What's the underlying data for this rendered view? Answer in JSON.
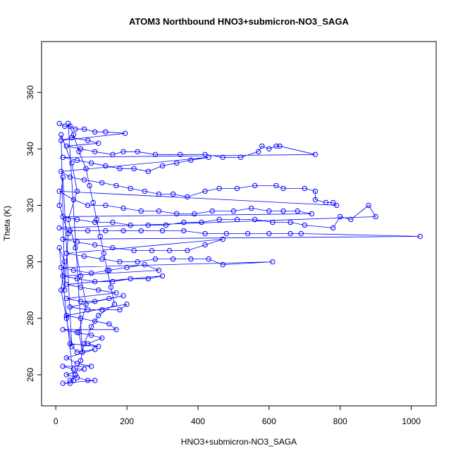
{
  "chart_data": {
    "type": "scatter",
    "title": "ATOM3 Northbound HNO3+submicron-NO3_SAGA",
    "xlabel": "HNO3+submicron-NO3_SAGA",
    "ylabel": "Theta (K)",
    "xlim": [
      -40,
      1070
    ],
    "ylim": [
      249,
      378
    ],
    "xticks": [
      0,
      200,
      400,
      600,
      800,
      1000
    ],
    "yticks": [
      260,
      280,
      300,
      320,
      340,
      360
    ],
    "xtick_labels": [
      "0",
      "200",
      "400",
      "600",
      "800",
      "1000"
    ],
    "ytick_labels": [
      "260",
      "280",
      "300",
      "320",
      "340",
      "360"
    ],
    "grid": false,
    "legend": "none",
    "series": [
      {
        "color": "#0000ff",
        "marker": "open-circle",
        "line": true,
        "points": [
          [
            10,
            349
          ],
          [
            25,
            348
          ],
          [
            40,
            348
          ],
          [
            55,
            347
          ],
          [
            80,
            347
          ],
          [
            110,
            346
          ],
          [
            140,
            346
          ],
          [
            195,
            345.5
          ],
          [
            15,
            343
          ],
          [
            45,
            344
          ],
          [
            90,
            343
          ],
          [
            120,
            342
          ],
          [
            30,
            341
          ],
          [
            70,
            340
          ],
          [
            110,
            339
          ],
          [
            160,
            338
          ],
          [
            190,
            339
          ],
          [
            230,
            339
          ],
          [
            280,
            338
          ],
          [
            350,
            338
          ],
          [
            420,
            338
          ],
          [
            470,
            337
          ],
          [
            520,
            337
          ],
          [
            570,
            339
          ],
          [
            580,
            341
          ],
          [
            600,
            340
          ],
          [
            620,
            341
          ],
          [
            630,
            341
          ],
          [
            730,
            338
          ],
          [
            20,
            337
          ],
          [
            60,
            336
          ],
          [
            100,
            335
          ],
          [
            140,
            334
          ],
          [
            180,
            333
          ],
          [
            220,
            333
          ],
          [
            260,
            332
          ],
          [
            300,
            334
          ],
          [
            340,
            335
          ],
          [
            380,
            336
          ],
          [
            430,
            337
          ],
          [
            15,
            332
          ],
          [
            40,
            330
          ],
          [
            80,
            329
          ],
          [
            130,
            328
          ],
          [
            170,
            327
          ],
          [
            210,
            326
          ],
          [
            250,
            325
          ],
          [
            290,
            324
          ],
          [
            330,
            324
          ],
          [
            370,
            323
          ],
          [
            420,
            325
          ],
          [
            460,
            326
          ],
          [
            510,
            326
          ],
          [
            560,
            327
          ],
          [
            620,
            327
          ],
          [
            640,
            326
          ],
          [
            700,
            326
          ],
          [
            730,
            325
          ],
          [
            730,
            322
          ],
          [
            760,
            321
          ],
          [
            780,
            321
          ],
          [
            790,
            320
          ],
          [
            10,
            325
          ],
          [
            50,
            322
          ],
          [
            90,
            320
          ],
          [
            140,
            320
          ],
          [
            190,
            319
          ],
          [
            240,
            318
          ],
          [
            290,
            318
          ],
          [
            340,
            317
          ],
          [
            390,
            317
          ],
          [
            440,
            318
          ],
          [
            500,
            318
          ],
          [
            550,
            319
          ],
          [
            600,
            318
          ],
          [
            640,
            318
          ],
          [
            680,
            318
          ],
          [
            720,
            317
          ],
          [
            20,
            316
          ],
          [
            60,
            315
          ],
          [
            110,
            314
          ],
          [
            160,
            314
          ],
          [
            210,
            313
          ],
          [
            260,
            313
          ],
          [
            310,
            313
          ],
          [
            360,
            314
          ],
          [
            410,
            314
          ],
          [
            460,
            315
          ],
          [
            510,
            315
          ],
          [
            560,
            315
          ],
          [
            610,
            314
          ],
          [
            660,
            314
          ],
          [
            700,
            313
          ],
          [
            780,
            312
          ],
          [
            800,
            316
          ],
          [
            830,
            315
          ],
          [
            880,
            320
          ],
          [
            900,
            316
          ],
          [
            10,
            312
          ],
          [
            40,
            311
          ],
          [
            90,
            311
          ],
          [
            140,
            311
          ],
          [
            190,
            311
          ],
          [
            240,
            311
          ],
          [
            300,
            311
          ],
          [
            360,
            311
          ],
          [
            420,
            310
          ],
          [
            480,
            310
          ],
          [
            540,
            310
          ],
          [
            600,
            310
          ],
          [
            660,
            310
          ],
          [
            690,
            310
          ],
          [
            1025,
            309
          ],
          [
            20,
            308
          ],
          [
            60,
            307
          ],
          [
            110,
            306
          ],
          [
            160,
            305
          ],
          [
            220,
            304
          ],
          [
            270,
            304
          ],
          [
            320,
            304
          ],
          [
            370,
            304
          ],
          [
            420,
            306
          ],
          [
            470,
            308
          ],
          [
            30,
            303
          ],
          [
            80,
            302
          ],
          [
            130,
            301
          ],
          [
            180,
            300
          ],
          [
            230,
            300
          ],
          [
            280,
            301
          ],
          [
            330,
            301
          ],
          [
            380,
            301
          ],
          [
            430,
            301
          ],
          [
            470,
            299
          ],
          [
            610,
            300
          ],
          [
            15,
            298
          ],
          [
            50,
            297
          ],
          [
            100,
            296
          ],
          [
            150,
            297
          ],
          [
            200,
            298
          ],
          [
            250,
            299
          ],
          [
            290,
            297
          ],
          [
            20,
            295
          ],
          [
            60,
            294
          ],
          [
            110,
            293
          ],
          [
            160,
            293
          ],
          [
            210,
            294
          ],
          [
            260,
            294
          ],
          [
            300,
            295
          ],
          [
            30,
            292
          ],
          [
            70,
            291
          ],
          [
            120,
            290
          ],
          [
            170,
            289
          ],
          [
            30,
            287
          ],
          [
            70,
            286
          ],
          [
            110,
            286
          ],
          [
            150,
            287
          ],
          [
            190,
            288
          ],
          [
            40,
            284
          ],
          [
            90,
            283
          ],
          [
            130,
            283
          ],
          [
            180,
            283
          ],
          [
            200,
            285
          ],
          [
            30,
            281
          ],
          [
            70,
            280
          ],
          [
            110,
            279
          ],
          [
            150,
            278
          ],
          [
            170,
            276
          ],
          [
            20,
            276
          ],
          [
            60,
            275
          ],
          [
            100,
            274
          ],
          [
            130,
            273
          ],
          [
            90,
            271
          ],
          [
            120,
            270
          ],
          [
            40,
            271
          ],
          [
            60,
            268
          ],
          [
            110,
            269
          ],
          [
            30,
            266
          ],
          [
            60,
            264
          ],
          [
            100,
            263
          ],
          [
            20,
            263
          ],
          [
            50,
            262
          ],
          [
            80,
            262
          ],
          [
            30,
            260
          ],
          [
            60,
            259
          ],
          [
            90,
            258
          ],
          [
            110,
            258
          ],
          [
            20,
            257
          ],
          [
            40,
            257
          ],
          [
            50,
            258
          ],
          [
            10,
            305
          ],
          [
            25,
            300
          ],
          [
            15,
            290
          ],
          [
            30,
            280
          ],
          [
            45,
            270
          ],
          [
            20,
            330
          ],
          [
            10,
            320
          ],
          [
            35,
            310
          ],
          [
            25,
            290
          ],
          [
            15,
            345
          ],
          [
            45,
            335
          ],
          [
            60,
            325
          ],
          [
            35,
            315
          ],
          [
            55,
            305
          ],
          [
            70,
            295
          ],
          [
            85,
            285
          ],
          [
            65,
            275
          ],
          [
            75,
            268
          ],
          [
            35,
            349
          ],
          [
            50,
            345
          ],
          [
            65,
            339
          ],
          [
            85,
            333
          ],
          [
            95,
            327
          ],
          [
            105,
            321
          ],
          [
            115,
            315
          ],
          [
            125,
            309
          ],
          [
            135,
            303
          ],
          [
            145,
            297
          ],
          [
            155,
            291
          ],
          [
            165,
            285
          ],
          [
            120,
            281
          ],
          [
            100,
            277
          ],
          [
            80,
            271
          ],
          [
            70,
            265
          ],
          [
            55,
            260
          ],
          [
            40,
            258
          ]
        ]
      }
    ]
  }
}
